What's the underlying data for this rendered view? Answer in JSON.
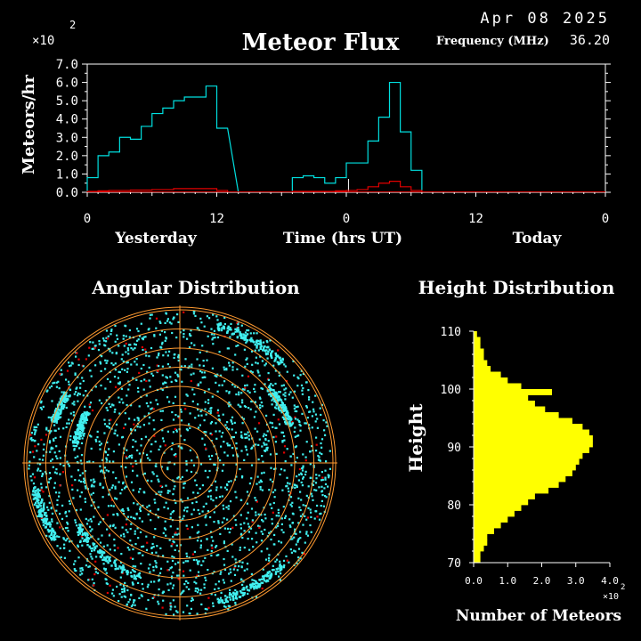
{
  "header": {
    "date": "Apr 08 2025",
    "freq_label": "Frequency (MHz)",
    "freq_value": "36.20",
    "exponent_main": "×10",
    "exponent_power": "2"
  },
  "chart_data": [
    {
      "type": "line",
      "title": "Meteor Flux",
      "ylabel": "Meteors/hr",
      "ylim": [
        0,
        7.0
      ],
      "y_ticks": [
        "0.0",
        "1.0",
        "2.0",
        "3.0",
        "4.0",
        "5.0",
        "6.0",
        "7.0"
      ],
      "x_ticks": [
        "0",
        "12",
        "0",
        "12",
        "0"
      ],
      "x_labels": {
        "yesterday": "Yesterday",
        "time": "Time (hrs UT)",
        "today": "Today"
      },
      "x_range_hours": [
        0,
        48
      ],
      "series": [
        {
          "color": "#00e0e0",
          "x": [
            0,
            1,
            2,
            3,
            4,
            5,
            6,
            7,
            8,
            9,
            10,
            11,
            12,
            13
          ],
          "values": [
            0.8,
            2.0,
            2.2,
            3.0,
            2.9,
            3.6,
            4.3,
            4.6,
            5.0,
            5.2,
            5.2,
            5.8,
            3.5,
            null
          ]
        },
        {
          "color": "#00e0e0",
          "x": [
            19,
            20,
            21,
            22,
            23,
            24,
            25,
            26,
            27,
            28,
            29,
            30
          ],
          "values": [
            0.8,
            0.9,
            0.8,
            0.5,
            0.8,
            1.6,
            1.6,
            2.8,
            4.1,
            6.0,
            3.3,
            1.2
          ]
        },
        {
          "color": "#e00000",
          "x": [
            0,
            1,
            2,
            3,
            4,
            5,
            6,
            7,
            8,
            9,
            10,
            11,
            12
          ],
          "values": [
            0.05,
            0.08,
            0.1,
            0.1,
            0.12,
            0.12,
            0.15,
            0.15,
            0.2,
            0.2,
            0.2,
            0.2,
            0.1
          ]
        },
        {
          "color": "#e00000",
          "x": [
            19,
            20,
            21,
            22,
            23,
            24,
            25,
            26,
            27,
            28,
            29,
            30
          ],
          "values": [
            0.05,
            0.05,
            0.05,
            0.05,
            0.08,
            0.1,
            0.15,
            0.3,
            0.5,
            0.6,
            0.3,
            0.1
          ]
        }
      ]
    },
    {
      "type": "scatter",
      "title": "Angular Distribution",
      "rings": 8
    },
    {
      "type": "bar",
      "title": "Height Distribution",
      "ylabel": "Height",
      "xlabel": "Number of Meteors",
      "x_exponent": "×10",
      "x_exponent_power": "2",
      "y_ticks": [
        "70",
        "80",
        "90",
        "100",
        "110"
      ],
      "ylim": [
        70,
        110
      ],
      "x_ticks": [
        "0.0",
        "1.0",
        "2.0",
        "3.0",
        "4.0"
      ],
      "xlim": [
        0,
        4.0
      ],
      "bar_color": "#ffff00",
      "heights": [
        70,
        71,
        72,
        73,
        74,
        75,
        76,
        77,
        78,
        79,
        80,
        81,
        82,
        83,
        84,
        85,
        86,
        87,
        88,
        89,
        90,
        91,
        92,
        93,
        94,
        95,
        96,
        97,
        98,
        99,
        100,
        101,
        102,
        103,
        104,
        105,
        106,
        107,
        108,
        109
      ],
      "values": [
        0.2,
        0.2,
        0.3,
        0.4,
        0.4,
        0.6,
        0.8,
        1.0,
        1.2,
        1.4,
        1.6,
        1.8,
        2.2,
        2.5,
        2.7,
        2.9,
        3.0,
        3.1,
        3.2,
        3.4,
        3.5,
        3.5,
        3.4,
        3.2,
        2.9,
        2.5,
        2.1,
        1.8,
        1.6,
        2.3,
        1.4,
        1.0,
        0.8,
        0.5,
        0.4,
        0.3,
        0.3,
        0.2,
        0.2,
        0.1
      ]
    }
  ]
}
